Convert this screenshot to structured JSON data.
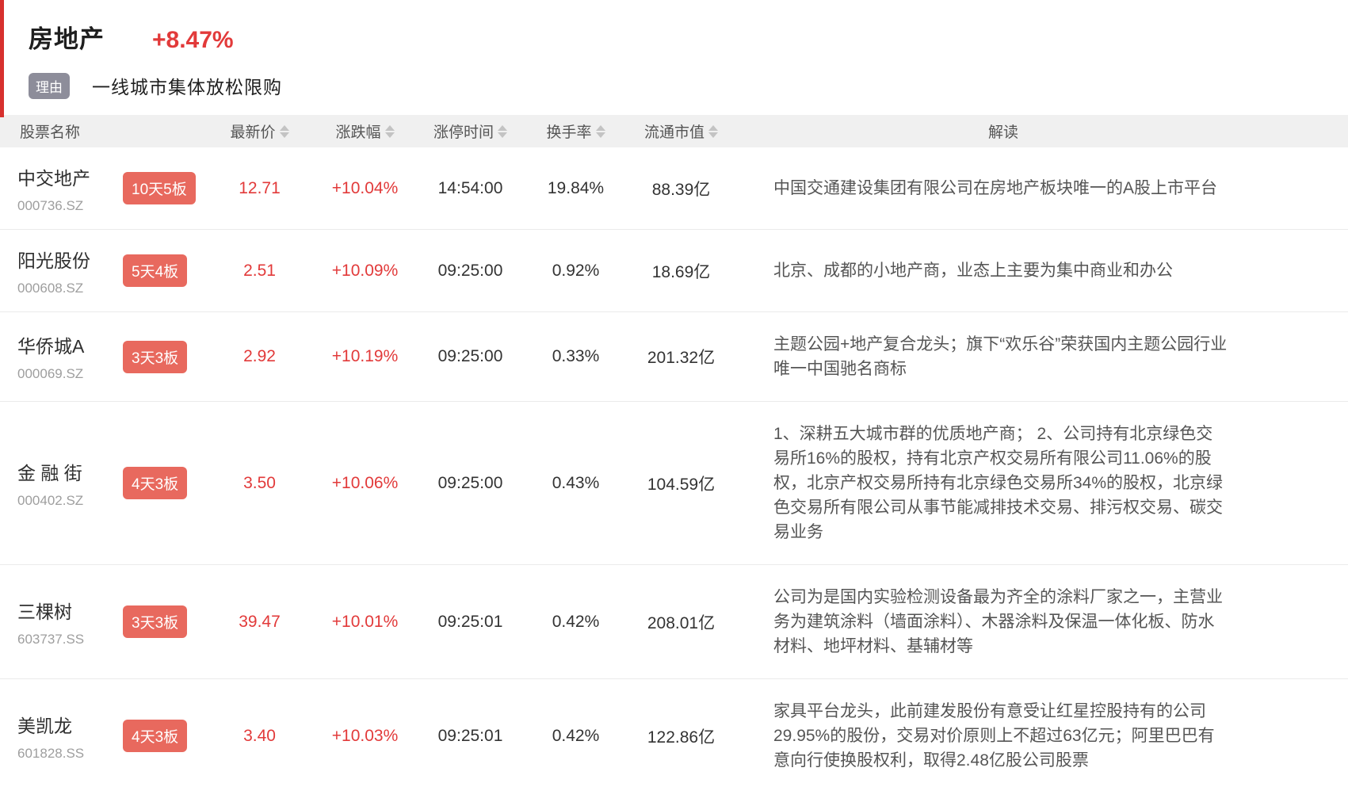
{
  "colors": {
    "accent_red": "#d7302e",
    "price_red": "#e23a3a",
    "badge_red": "#e8695e",
    "reason_badge_gray": "#8d8d9a",
    "header_bg": "#f0f0f0"
  },
  "header": {
    "sector_name": "房地产",
    "sector_change": "+8.47%",
    "reason_label": "理由",
    "reason_text": "一线城市集体放松限购"
  },
  "table": {
    "columns": [
      {
        "label": "股票名称",
        "sortable": false
      },
      {
        "label": "最新价",
        "sortable": true
      },
      {
        "label": "涨跌幅",
        "sortable": true
      },
      {
        "label": "涨停时间",
        "sortable": true
      },
      {
        "label": "换手率",
        "sortable": true
      },
      {
        "label": "流通市值",
        "sortable": true
      },
      {
        "label": "解读",
        "sortable": false
      }
    ],
    "rows": [
      {
        "name": "中交地产",
        "code": "000736.SZ",
        "streak_badge": "10天5板",
        "latest_price": "12.71",
        "change_pct": "+10.04%",
        "limit_up_time": "14:54:00",
        "turnover_rate": "19.84%",
        "float_market_cap": "88.39亿",
        "analysis": "中国交通建设集团有限公司在房地产板块唯一的A股上市平台"
      },
      {
        "name": "阳光股份",
        "code": "000608.SZ",
        "streak_badge": "5天4板",
        "latest_price": "2.51",
        "change_pct": "+10.09%",
        "limit_up_time": "09:25:00",
        "turnover_rate": "0.92%",
        "float_market_cap": "18.69亿",
        "analysis": "北京、成都的小地产商，业态上主要为集中商业和办公"
      },
      {
        "name": "华侨城A",
        "code": "000069.SZ",
        "streak_badge": "3天3板",
        "latest_price": "2.92",
        "change_pct": "+10.19%",
        "limit_up_time": "09:25:00",
        "turnover_rate": "0.33%",
        "float_market_cap": "201.32亿",
        "analysis": "主题公园+地产复合龙头；旗下“欢乐谷”荣获国内主题公园行业唯一中国驰名商标"
      },
      {
        "name": "金 融 街",
        "code": "000402.SZ",
        "streak_badge": "4天3板",
        "latest_price": "3.50",
        "change_pct": "+10.06%",
        "limit_up_time": "09:25:00",
        "turnover_rate": "0.43%",
        "float_market_cap": "104.59亿",
        "analysis": "1、深耕五大城市群的优质地产商； 2、公司持有北京绿色交易所16%的股权，持有北京产权交易所有限公司11.06%的股权，北京产权交易所持有北京绿色交易所34%的股权，北京绿色交易所有限公司从事节能减排技术交易、排污权交易、碳交易业务"
      },
      {
        "name": "三棵树",
        "code": "603737.SS",
        "streak_badge": "3天3板",
        "latest_price": "39.47",
        "change_pct": "+10.01%",
        "limit_up_time": "09:25:01",
        "turnover_rate": "0.42%",
        "float_market_cap": "208.01亿",
        "analysis": "公司为是国内实验检测设备最为齐全的涂料厂家之一，主营业务为建筑涂料（墙面涂料）、木器涂料及保温一体化板、防水材料、地坪材料、基辅材等"
      },
      {
        "name": "美凯龙",
        "code": "601828.SS",
        "streak_badge": "4天3板",
        "latest_price": "3.40",
        "change_pct": "+10.03%",
        "limit_up_time": "09:25:01",
        "turnover_rate": "0.42%",
        "float_market_cap": "122.86亿",
        "analysis": "家具平台龙头，此前建发股份有意受让红星控股持有的公司29.95%的股份，交易对价原则上不超过63亿元；阿里巴巴有意向行使换股权利，取得2.48亿股公司股票"
      }
    ]
  }
}
